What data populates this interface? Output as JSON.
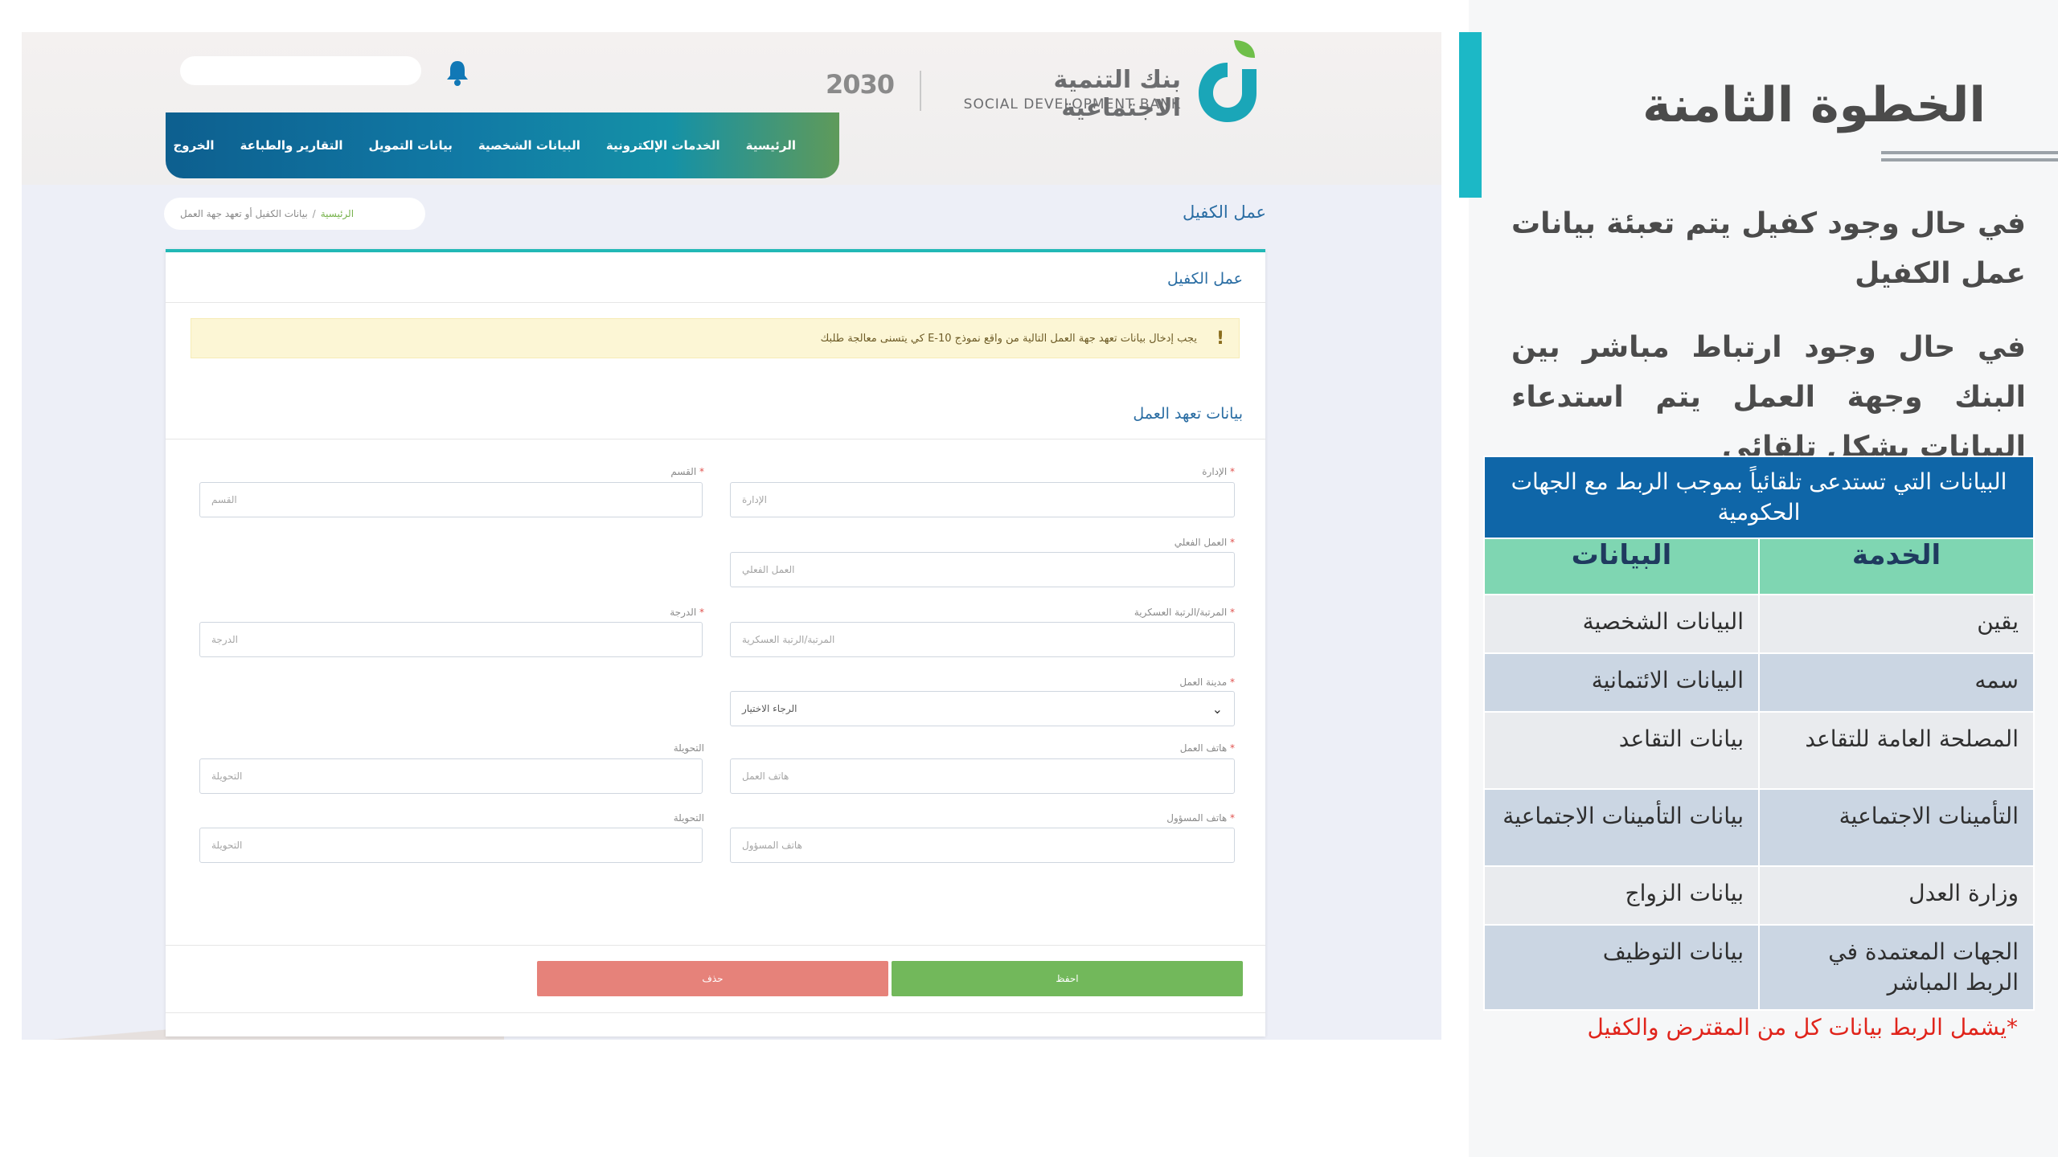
{
  "screenshot": {
    "bank_name_ar": "بنك التنمية الاجتماعية",
    "bank_name_en": "SOCIAL DEVELOPMENT BANK",
    "vision": "2030",
    "nav": {
      "items": [
        "الرئيسية",
        "الخدمات الإلكترونية",
        "البيانات الشخصية",
        "بيانات التمويل",
        "التقارير والطباعة",
        "الخروج"
      ]
    },
    "page_title": "عمل الكفيل",
    "breadcrumb": {
      "home": "الرئيسية",
      "separator": "/",
      "current": "بيانات الكفيل أو تعهد جهة العمل"
    },
    "card_title": "عمل الكفيل",
    "alert": {
      "icon": "!",
      "text": "يجب إدخال بيانات تعهد جهة العمل التالية من واقع نموذج E-10 كي يتسنى معالجة طلبك"
    },
    "section_title": "بيانات تعهد العمل",
    "fields": {
      "department": {
        "label": "الإدارة",
        "required": "*",
        "placeholder": "الإدارة"
      },
      "section": {
        "label": "القسم",
        "required": "*",
        "placeholder": "القسم"
      },
      "actual_work": {
        "label": "العمل الفعلي",
        "required": "*",
        "placeholder": "العمل الفعلي"
      },
      "rank": {
        "label": "المرتبة/الرتبة العسكرية",
        "required": "*",
        "placeholder": "المرتبة/الرتبة العسكرية"
      },
      "grade": {
        "label": "الدرجة",
        "required": "*",
        "placeholder": "الدرجة"
      },
      "work_city": {
        "label": "مدينة العمل",
        "required": "*",
        "value": "الرجاء الاختيار"
      },
      "work_phone": {
        "label": "هاتف العمل",
        "required": "*",
        "placeholder": "هاتف العمل"
      },
      "work_ext": {
        "label": "التحويلة",
        "placeholder": "التحويلة"
      },
      "manager_phone": {
        "label": "هاتف المسؤول",
        "required": "*",
        "placeholder": "هاتف المسؤول"
      },
      "manager_ext": {
        "label": "التحويلة",
        "placeholder": "التحويلة"
      }
    },
    "buttons": {
      "save": "احفظ",
      "delete": "حذف"
    }
  },
  "slide": {
    "step_title": "الخطوة الثامنة",
    "paragraph_1": "في حال وجود كفيل يتم تعبئة بيانات عمل الكفيل",
    "paragraph_2": "في حال وجود ارتباط مباشر بين البنك وجهة العمل يتم استدعاء البيانات بشكل تلقائي",
    "table": {
      "caption": "البيانات التي تستدعى تلقائياً بموجب الربط مع الجهات الحكومية",
      "col_service": "الخدمة",
      "col_data": "البيانات",
      "rows": [
        {
          "service": "يقين",
          "data": "البيانات الشخصية"
        },
        {
          "service": "سمه",
          "data": "البيانات الائتمانية"
        },
        {
          "service": "المصلحة العامة للتقاعد",
          "data": "بيانات التقاعد"
        },
        {
          "service": "التأمينات الاجتماعية",
          "data": "بيانات التأمينات الاجتماعية"
        },
        {
          "service": "وزارة العدل",
          "data": "بيانات الزواج"
        },
        {
          "service": "الجهات المعتمدة في الربط المباشر",
          "data": "بيانات التوظيف"
        }
      ]
    },
    "note": "*يشمل الربط بيانات كل من المقترض والكفيل"
  },
  "colors": {
    "accent_teal": "#1cb8c6",
    "table_header_blue": "#0f66a8",
    "table_column_green": "#7fd6b2",
    "save_green": "#72b85b",
    "delete_red": "#e6827a",
    "note_red": "#e0241b"
  }
}
